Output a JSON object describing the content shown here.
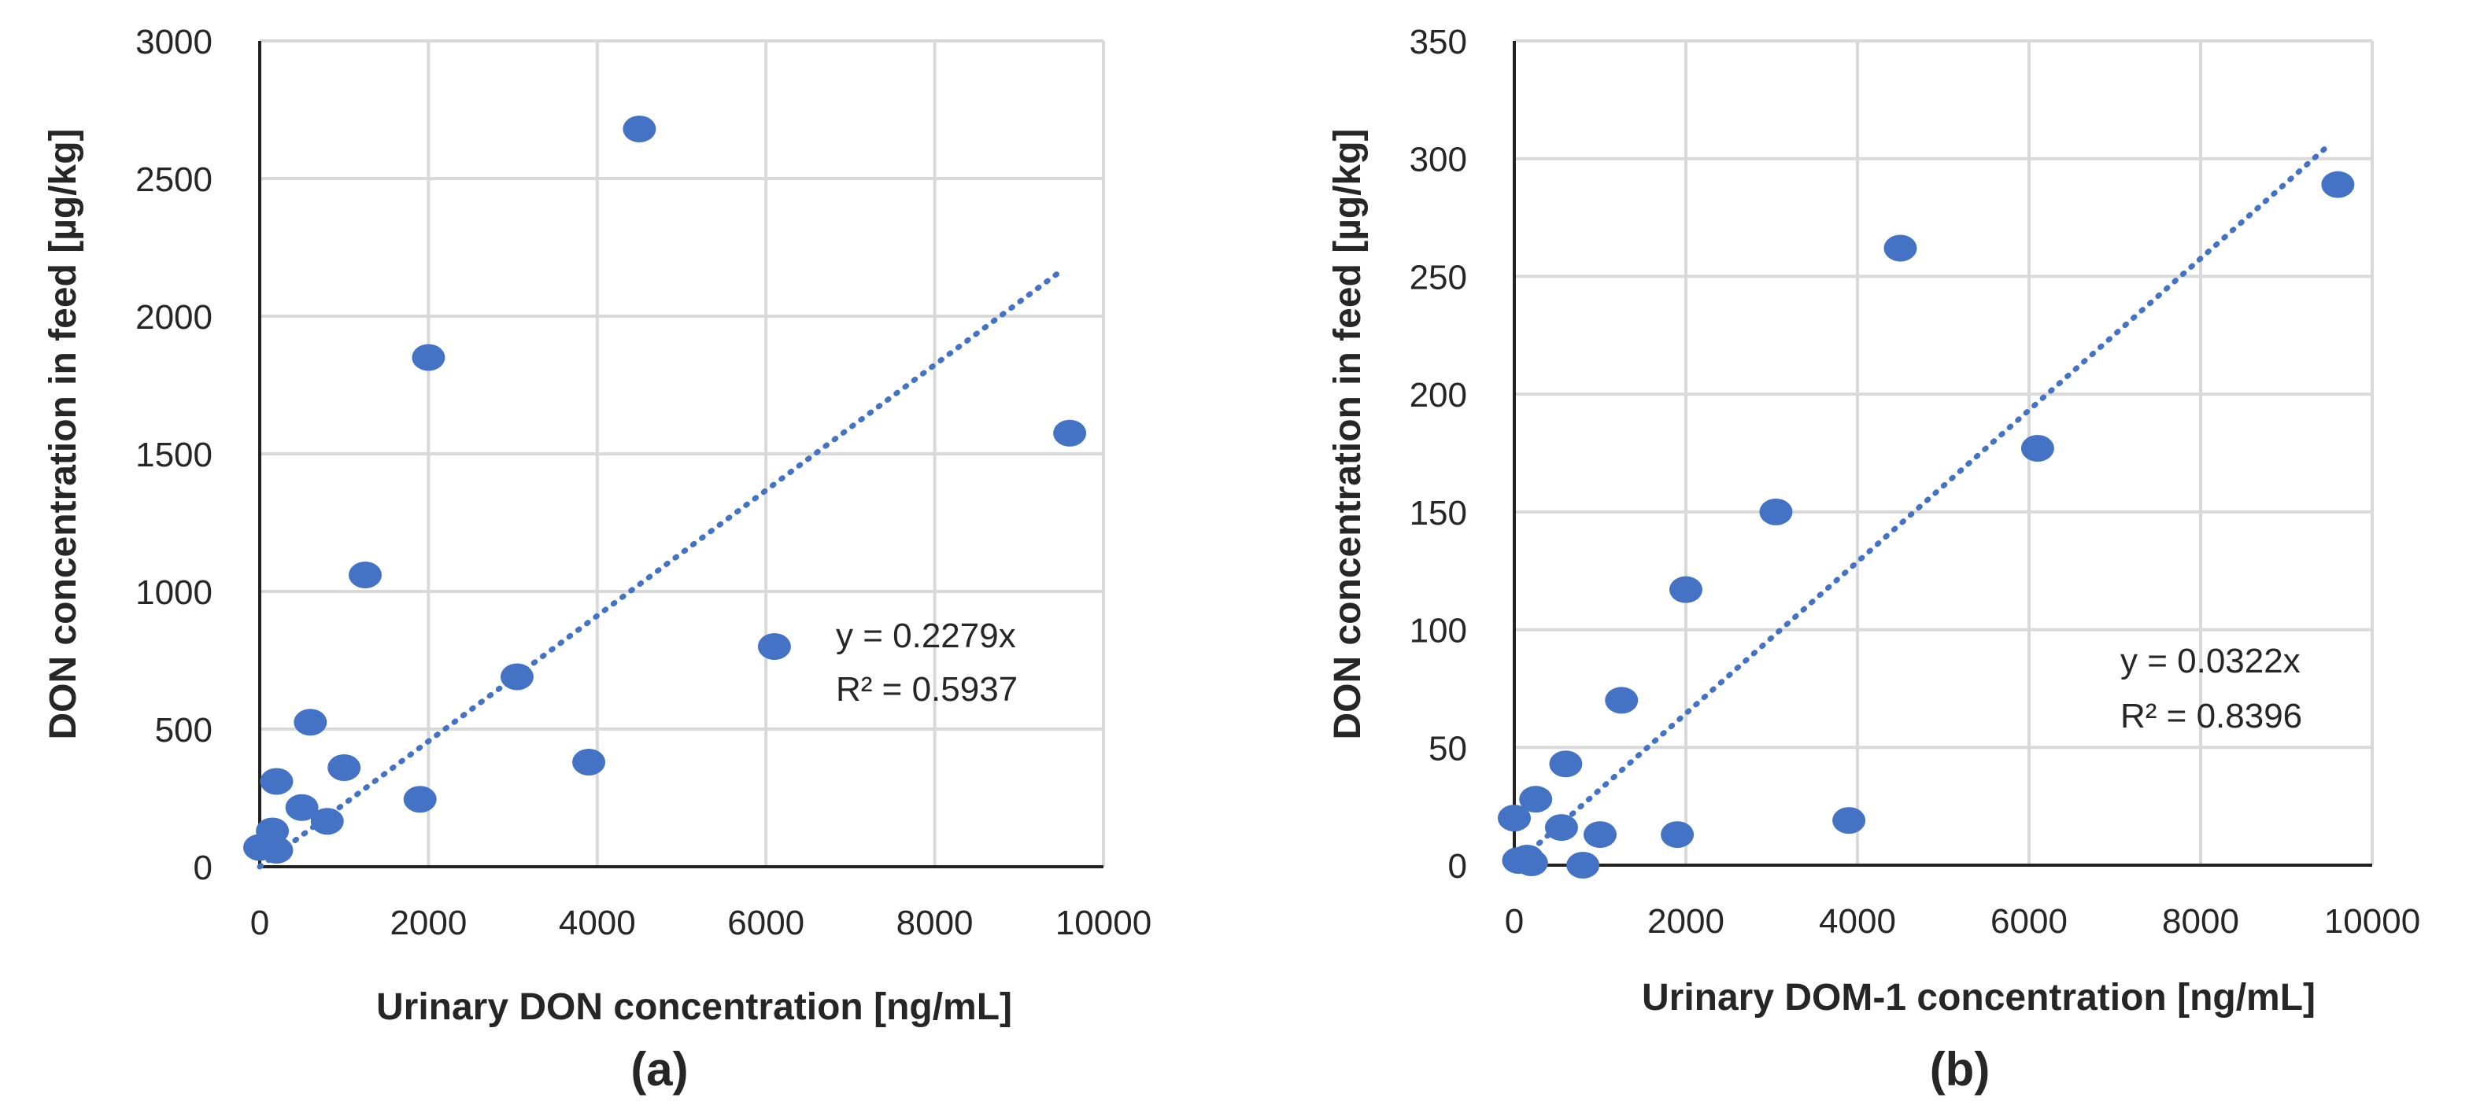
{
  "chart_data": [
    {
      "type": "scatter",
      "panel_label": "(a)",
      "xlabel": "Urinary DON concentration [ng/mL]",
      "ylabel": "DON concentration in feed [µg/kg]",
      "xlim": [
        0,
        10000
      ],
      "ylim": [
        0,
        3000
      ],
      "xticks": [
        "0",
        "2000",
        "4000",
        "6000",
        "8000",
        "10000"
      ],
      "yticks": [
        "0",
        "500",
        "1000",
        "1500",
        "2000",
        "2500",
        "3000"
      ],
      "grid": true,
      "marker_color": "#4472C4",
      "points": [
        {
          "x": 0,
          "y": 70
        },
        {
          "x": 150,
          "y": 130
        },
        {
          "x": 200,
          "y": 60
        },
        {
          "x": 200,
          "y": 310
        },
        {
          "x": 500,
          "y": 215
        },
        {
          "x": 600,
          "y": 525
        },
        {
          "x": 800,
          "y": 165
        },
        {
          "x": 1000,
          "y": 360
        },
        {
          "x": 1250,
          "y": 1060
        },
        {
          "x": 1900,
          "y": 245
        },
        {
          "x": 2000,
          "y": 1850
        },
        {
          "x": 3050,
          "y": 690
        },
        {
          "x": 3900,
          "y": 380
        },
        {
          "x": 4500,
          "y": 2680
        },
        {
          "x": 6100,
          "y": 800
        },
        {
          "x": 9600,
          "y": 1575
        }
      ],
      "trendline": {
        "type": "linear_through_origin",
        "slope": 0.2279,
        "x_end": 9500,
        "style": "dotted"
      },
      "equation": "y = 0.2279x",
      "r_squared": "R² = 0.5937"
    },
    {
      "type": "scatter",
      "panel_label": "(b)",
      "xlabel": "Urinary DOM-1 concentration [ng/mL]",
      "ylabel": "DON concentration in feed [µg/kg]",
      "xlim": [
        0,
        10000
      ],
      "ylim": [
        0,
        350
      ],
      "xticks": [
        "0",
        "2000",
        "4000",
        "6000",
        "8000",
        "10000"
      ],
      "yticks": [
        "0",
        "50",
        "100",
        "150",
        "200",
        "250",
        "300",
        "350"
      ],
      "grid": true,
      "marker_color": "#4472C4",
      "points": [
        {
          "x": 0,
          "y": 20
        },
        {
          "x": 50,
          "y": 2
        },
        {
          "x": 150,
          "y": 3
        },
        {
          "x": 200,
          "y": 1
        },
        {
          "x": 250,
          "y": 28
        },
        {
          "x": 550,
          "y": 16
        },
        {
          "x": 600,
          "y": 43
        },
        {
          "x": 800,
          "y": 0
        },
        {
          "x": 1000,
          "y": 13
        },
        {
          "x": 1250,
          "y": 70
        },
        {
          "x": 1900,
          "y": 13
        },
        {
          "x": 2000,
          "y": 117
        },
        {
          "x": 3050,
          "y": 150
        },
        {
          "x": 3900,
          "y": 19
        },
        {
          "x": 4500,
          "y": 262
        },
        {
          "x": 6100,
          "y": 177
        },
        {
          "x": 9600,
          "y": 289
        }
      ],
      "trendline": {
        "type": "linear_through_origin",
        "slope": 0.0322,
        "x_end": 9500,
        "style": "dotted"
      },
      "equation": "y = 0.0322x",
      "r_squared": "R² = 0.8396"
    }
  ]
}
